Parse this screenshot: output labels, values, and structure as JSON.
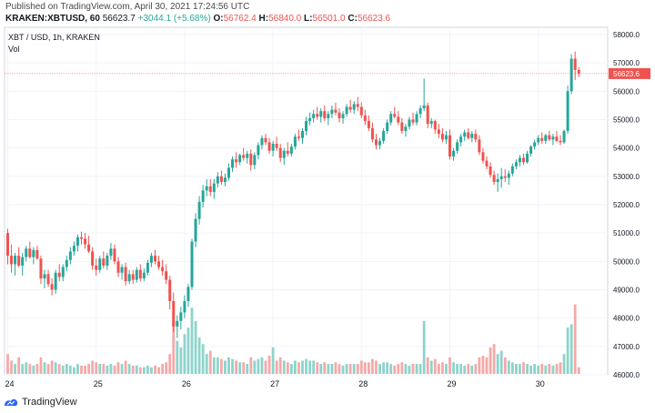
{
  "header": {
    "published": "Published on TradingView.com, April 30, 2021 17:24:56 UTC",
    "symbol": "KRAKEN:XBTUSD, 60",
    "last": "56623.7",
    "change": "+3044.1 (+5.68%)",
    "o_label": "O:",
    "o_value": "56762.4",
    "h_label": "H:",
    "h_value": "56840.0",
    "l_label": "L:",
    "l_value": "56501.0",
    "c_label": "C:",
    "c_value": "56623.6"
  },
  "footer": {
    "brand": "TradingView"
  },
  "colors": {
    "up": "#26a69a",
    "down": "#ef5350",
    "vol_up": "#8ed3cb",
    "vol_down": "#f4a9a8",
    "price_line": "#ef5350"
  },
  "chart_data": {
    "type": "candlestick",
    "legend_title": "XBT / USD, 1h, KRAKEN",
    "legend_sub": "Vol",
    "price_tag": "56623.6",
    "ylim": [
      46000,
      58000
    ],
    "y_ticks": [
      "58000.0",
      "57000.0",
      "56000.0",
      "55000.0",
      "54000.0",
      "53000.0",
      "52000.0",
      "51000.0",
      "50000.0",
      "49000.0",
      "48000.0",
      "47000.0",
      "46000.0"
    ],
    "x_ticks": [
      {
        "label": "24",
        "index": 0
      },
      {
        "label": "25",
        "index": 24
      },
      {
        "label": "26",
        "index": 48
      },
      {
        "label": "27",
        "index": 72
      },
      {
        "label": "28",
        "index": 96
      },
      {
        "label": "29",
        "index": 120
      },
      {
        "label": "30",
        "index": 144
      }
    ],
    "candles": [
      [
        51000,
        51150,
        49900,
        50200,
        0.6
      ],
      [
        50200,
        50600,
        49600,
        49900,
        0.4
      ],
      [
        49900,
        50300,
        49500,
        50200,
        0.3
      ],
      [
        50200,
        50500,
        49800,
        49850,
        0.5
      ],
      [
        49850,
        50300,
        49500,
        50150,
        0.3
      ],
      [
        50150,
        50550,
        50000,
        50450,
        0.35
      ],
      [
        50450,
        50700,
        50100,
        50150,
        0.3
      ],
      [
        50150,
        50500,
        49900,
        50400,
        0.25
      ],
      [
        50400,
        50550,
        50050,
        50100,
        0.3
      ],
      [
        50100,
        50200,
        49200,
        49400,
        0.5
      ],
      [
        49400,
        49700,
        49050,
        49550,
        0.35
      ],
      [
        49550,
        49700,
        49100,
        49200,
        0.3
      ],
      [
        49200,
        49400,
        48800,
        49000,
        0.4
      ],
      [
        49000,
        49700,
        48850,
        49600,
        0.35
      ],
      [
        49600,
        49900,
        49300,
        49450,
        0.3
      ],
      [
        49450,
        49900,
        49300,
        49800,
        0.25
      ],
      [
        49800,
        50200,
        49650,
        50050,
        0.3
      ],
      [
        50050,
        50500,
        49900,
        50350,
        0.25
      ],
      [
        50350,
        50700,
        50200,
        50550,
        0.2
      ],
      [
        50550,
        50950,
        50350,
        50850,
        0.3
      ],
      [
        50850,
        51050,
        50600,
        50800,
        0.25
      ],
      [
        50800,
        51000,
        50450,
        50600,
        0.25
      ],
      [
        50600,
        50900,
        50300,
        50350,
        0.3
      ],
      [
        50350,
        50500,
        49700,
        49850,
        0.4
      ],
      [
        49850,
        50100,
        49500,
        49700,
        0.35
      ],
      [
        49700,
        50200,
        49600,
        50100,
        0.3
      ],
      [
        50100,
        50350,
        49750,
        49850,
        0.3
      ],
      [
        49850,
        50300,
        49700,
        50200,
        0.25
      ],
      [
        50200,
        50650,
        50050,
        50450,
        0.3
      ],
      [
        50450,
        50600,
        49900,
        50000,
        0.25
      ],
      [
        50000,
        50150,
        49450,
        49600,
        0.35
      ],
      [
        49600,
        49900,
        49350,
        49800,
        0.3
      ],
      [
        49800,
        49950,
        49150,
        49300,
        0.4
      ],
      [
        49300,
        49700,
        49200,
        49550,
        0.3
      ],
      [
        49550,
        49700,
        49200,
        49350,
        0.25
      ],
      [
        49350,
        49800,
        49250,
        49700,
        0.25
      ],
      [
        49700,
        49900,
        49300,
        49400,
        0.2
      ],
      [
        49400,
        49750,
        49300,
        49600,
        0.2
      ],
      [
        49600,
        50050,
        49500,
        49950,
        0.25
      ],
      [
        49950,
        50300,
        49800,
        50200,
        0.2
      ],
      [
        50200,
        50400,
        49900,
        50000,
        0.25
      ],
      [
        50000,
        50200,
        49700,
        49800,
        0.2
      ],
      [
        49800,
        50050,
        49500,
        49650,
        0.3
      ],
      [
        49650,
        49900,
        49200,
        49350,
        0.35
      ],
      [
        49350,
        49500,
        48300,
        48600,
        0.6
      ],
      [
        48600,
        48900,
        47500,
        47700,
        1.6
      ],
      [
        47700,
        48100,
        47300,
        47900,
        1.0
      ],
      [
        47900,
        48400,
        47600,
        48200,
        0.8
      ],
      [
        48200,
        48800,
        48000,
        48600,
        1.2
      ],
      [
        48600,
        49200,
        48400,
        49100,
        1.4
      ],
      [
        49100,
        50800,
        49000,
        50700,
        2.0
      ],
      [
        50700,
        51700,
        50500,
        51500,
        1.6
      ],
      [
        51500,
        52300,
        51300,
        52100,
        1.1
      ],
      [
        52100,
        52700,
        51900,
        52500,
        0.9
      ],
      [
        52500,
        52900,
        52300,
        52650,
        0.6
      ],
      [
        52650,
        52900,
        52300,
        52450,
        0.7
      ],
      [
        52450,
        52900,
        52200,
        52750,
        0.5
      ],
      [
        52750,
        53150,
        52600,
        53000,
        0.5
      ],
      [
        53000,
        53200,
        52700,
        52800,
        0.45
      ],
      [
        52800,
        53100,
        52650,
        52950,
        0.4
      ],
      [
        52950,
        53450,
        52850,
        53300,
        0.5
      ],
      [
        53300,
        53700,
        53150,
        53600,
        0.45
      ],
      [
        53600,
        53850,
        53300,
        53500,
        0.4
      ],
      [
        53500,
        53800,
        53400,
        53750,
        0.35
      ],
      [
        53750,
        54000,
        53550,
        53650,
        0.35
      ],
      [
        53650,
        53900,
        53450,
        53800,
        0.3
      ],
      [
        53800,
        53950,
        53200,
        53400,
        0.5
      ],
      [
        53400,
        53850,
        53250,
        53750,
        0.4
      ],
      [
        53750,
        54200,
        53600,
        54100,
        0.45
      ],
      [
        54100,
        54450,
        53950,
        54350,
        0.5
      ],
      [
        54350,
        54500,
        54100,
        54200,
        0.4
      ],
      [
        54200,
        54350,
        53800,
        53900,
        0.55
      ],
      [
        53900,
        54250,
        53700,
        54150,
        0.8
      ],
      [
        54150,
        54400,
        53900,
        54000,
        0.4
      ],
      [
        54000,
        54150,
        53500,
        53650,
        0.5
      ],
      [
        53650,
        54000,
        53400,
        53900,
        0.4
      ],
      [
        53900,
        54200,
        53700,
        53800,
        0.35
      ],
      [
        53800,
        54150,
        53700,
        54050,
        0.3
      ],
      [
        54050,
        54500,
        53950,
        54400,
        0.4
      ],
      [
        54400,
        54650,
        54250,
        54350,
        0.35
      ],
      [
        54350,
        54700,
        54150,
        54600,
        0.4
      ],
      [
        54600,
        55100,
        54450,
        54950,
        0.45
      ],
      [
        54950,
        55250,
        54800,
        55050,
        0.4
      ],
      [
        55050,
        55350,
        54900,
        55200,
        0.4
      ],
      [
        55200,
        55450,
        55000,
        55100,
        0.35
      ],
      [
        55100,
        55400,
        54900,
        55300,
        0.3
      ],
      [
        55300,
        55500,
        54950,
        55050,
        0.35
      ],
      [
        55050,
        55300,
        54800,
        55200,
        0.3
      ],
      [
        55200,
        55500,
        55050,
        55350,
        0.3
      ],
      [
        55350,
        55600,
        55150,
        55250,
        0.35
      ],
      [
        55250,
        55400,
        54900,
        55050,
        0.3
      ],
      [
        55050,
        55300,
        54850,
        55200,
        0.25
      ],
      [
        55200,
        55550,
        55100,
        55450,
        0.3
      ],
      [
        55450,
        55700,
        55250,
        55350,
        0.3
      ],
      [
        55350,
        55650,
        55200,
        55550,
        0.3
      ],
      [
        55550,
        55800,
        55300,
        55450,
        0.3
      ],
      [
        55450,
        55600,
        55050,
        55150,
        0.4
      ],
      [
        55150,
        55350,
        54800,
        54950,
        0.35
      ],
      [
        54950,
        55150,
        54600,
        54700,
        0.35
      ],
      [
        54700,
        54900,
        54200,
        54300,
        0.45
      ],
      [
        54300,
        54500,
        53950,
        54100,
        0.4
      ],
      [
        54100,
        54350,
        53950,
        54250,
        0.3
      ],
      [
        54250,
        54700,
        54150,
        54600,
        0.35
      ],
      [
        54600,
        55000,
        54500,
        54900,
        0.35
      ],
      [
        54900,
        55300,
        54800,
        55200,
        0.3
      ],
      [
        55200,
        55450,
        55050,
        55100,
        0.25
      ],
      [
        55100,
        55300,
        54800,
        54900,
        0.3
      ],
      [
        54900,
        55050,
        54500,
        54600,
        0.35
      ],
      [
        54600,
        54850,
        54400,
        54750,
        0.3
      ],
      [
        54750,
        55100,
        54650,
        55000,
        0.25
      ],
      [
        55000,
        55250,
        54800,
        54900,
        0.3
      ],
      [
        54900,
        55300,
        54800,
        55200,
        0.3
      ],
      [
        55200,
        55500,
        55050,
        55400,
        0.3
      ],
      [
        55400,
        56450,
        55300,
        55500,
        1.6
      ],
      [
        55500,
        55600,
        54700,
        54850,
        0.5
      ],
      [
        54850,
        55050,
        54700,
        54950,
        0.4
      ],
      [
        54950,
        55000,
        54500,
        54650,
        0.45
      ],
      [
        54650,
        54850,
        54350,
        54500,
        0.3
      ],
      [
        54500,
        54700,
        54200,
        54300,
        0.35
      ],
      [
        54300,
        54600,
        54150,
        54450,
        0.3
      ],
      [
        54450,
        54650,
        53600,
        53700,
        0.5
      ],
      [
        53700,
        54000,
        53550,
        53900,
        0.35
      ],
      [
        53900,
        54300,
        53800,
        54200,
        0.3
      ],
      [
        54200,
        54500,
        54050,
        54400,
        0.3
      ],
      [
        54400,
        54650,
        54250,
        54550,
        0.25
      ],
      [
        54550,
        54700,
        54300,
        54350,
        0.3
      ],
      [
        54350,
        54600,
        54200,
        54500,
        0.25
      ],
      [
        54500,
        54650,
        54200,
        54300,
        0.3
      ],
      [
        54300,
        54450,
        53750,
        53850,
        0.5
      ],
      [
        53850,
        54000,
        53450,
        53550,
        0.55
      ],
      [
        53550,
        53700,
        53250,
        53350,
        0.5
      ],
      [
        53350,
        53500,
        52950,
        53050,
        0.8
      ],
      [
        53050,
        53200,
        52700,
        52800,
        0.9
      ],
      [
        52800,
        53100,
        52450,
        52900,
        0.6
      ],
      [
        52900,
        53300,
        52600,
        53000,
        0.7
      ],
      [
        53000,
        53250,
        52800,
        52950,
        0.5
      ],
      [
        52950,
        53200,
        52700,
        53100,
        0.4
      ],
      [
        53100,
        53450,
        53000,
        53350,
        0.35
      ],
      [
        53350,
        53600,
        53250,
        53500,
        0.3
      ],
      [
        53500,
        53750,
        53350,
        53650,
        0.3
      ],
      [
        53650,
        53800,
        53400,
        53500,
        0.35
      ],
      [
        53500,
        53900,
        53450,
        53800,
        0.3
      ],
      [
        53800,
        54100,
        53700,
        54050,
        0.25
      ],
      [
        54050,
        54300,
        53950,
        54200,
        0.3
      ],
      [
        54200,
        54450,
        54100,
        54350,
        0.25
      ],
      [
        54350,
        54550,
        54150,
        54250,
        0.3
      ],
      [
        54250,
        54500,
        54150,
        54450,
        0.25
      ],
      [
        54450,
        54600,
        54250,
        54300,
        0.3
      ],
      [
        54300,
        54500,
        54100,
        54400,
        0.25
      ],
      [
        54400,
        54600,
        54200,
        54250,
        0.3
      ],
      [
        54250,
        54450,
        54100,
        54200,
        0.35
      ],
      [
        54200,
        54650,
        54150,
        54600,
        0.6
      ],
      [
        54600,
        56200,
        54500,
        56000,
        1.4
      ],
      [
        56000,
        57300,
        55900,
        57150,
        1.5
      ],
      [
        57150,
        57400,
        56400,
        56750,
        2.1
      ],
      [
        56750,
        56850,
        56500,
        56624,
        0.2
      ]
    ]
  }
}
